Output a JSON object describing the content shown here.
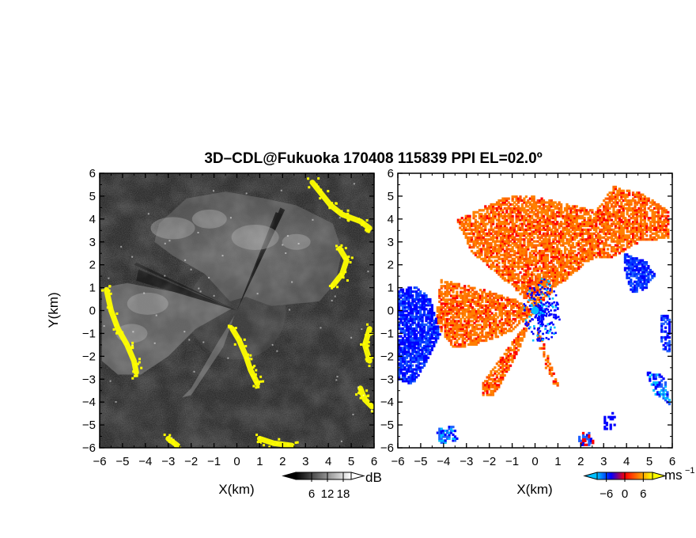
{
  "chart_data": [
    {
      "type": "heatmap",
      "title": "3D–CDL@Fukuoka 170408 115839 PPI EL=02.0º",
      "panel": "reflectivity",
      "xlabel": "X(km)",
      "ylabel": "Y(km)",
      "xlim": [
        -6,
        6
      ],
      "ylim": [
        -6,
        6
      ],
      "xticks": [
        "−6",
        "−5",
        "−4",
        "−3",
        "−2",
        "−1",
        "0",
        "1",
        "2",
        "3",
        "4",
        "5",
        "6"
      ],
      "yticks": [
        "6",
        "5",
        "4",
        "3",
        "2",
        "1",
        "0",
        "−1",
        "−2",
        "−3",
        "−4",
        "−5",
        "−6"
      ],
      "colorbar": {
        "unit": "dB",
        "ticks": [
          "6",
          "12",
          "18"
        ],
        "tick_values": [
          6,
          12,
          18
        ],
        "range": [
          0,
          21
        ],
        "colors": [
          "#000000",
          "#ffffff"
        ]
      },
      "highlight_color": "#ffff00"
    },
    {
      "type": "heatmap",
      "panel": "doppler-velocity",
      "xlabel": "X(km)",
      "xlim": [
        -6,
        6
      ],
      "ylim": [
        -6,
        6
      ],
      "xticks": [
        "−6",
        "−5",
        "−4",
        "−3",
        "−2",
        "−1",
        "0",
        "1",
        "2",
        "3",
        "4",
        "5",
        "6"
      ],
      "yticks": [
        "6",
        "5",
        "4",
        "3",
        "2",
        "1",
        "0",
        "−1",
        "−2",
        "−3",
        "−4",
        "−5",
        "−6"
      ],
      "colorbar": {
        "unit": "ms",
        "unit_exponent": "−1",
        "ticks": [
          "−6",
          "0",
          "6"
        ],
        "tick_values": [
          -6,
          0,
          6
        ],
        "range": [
          -9,
          9
        ],
        "colors": [
          "#00bfff",
          "#0000ff",
          "#ff0000",
          "#ff8000",
          "#ffff00"
        ]
      }
    }
  ]
}
